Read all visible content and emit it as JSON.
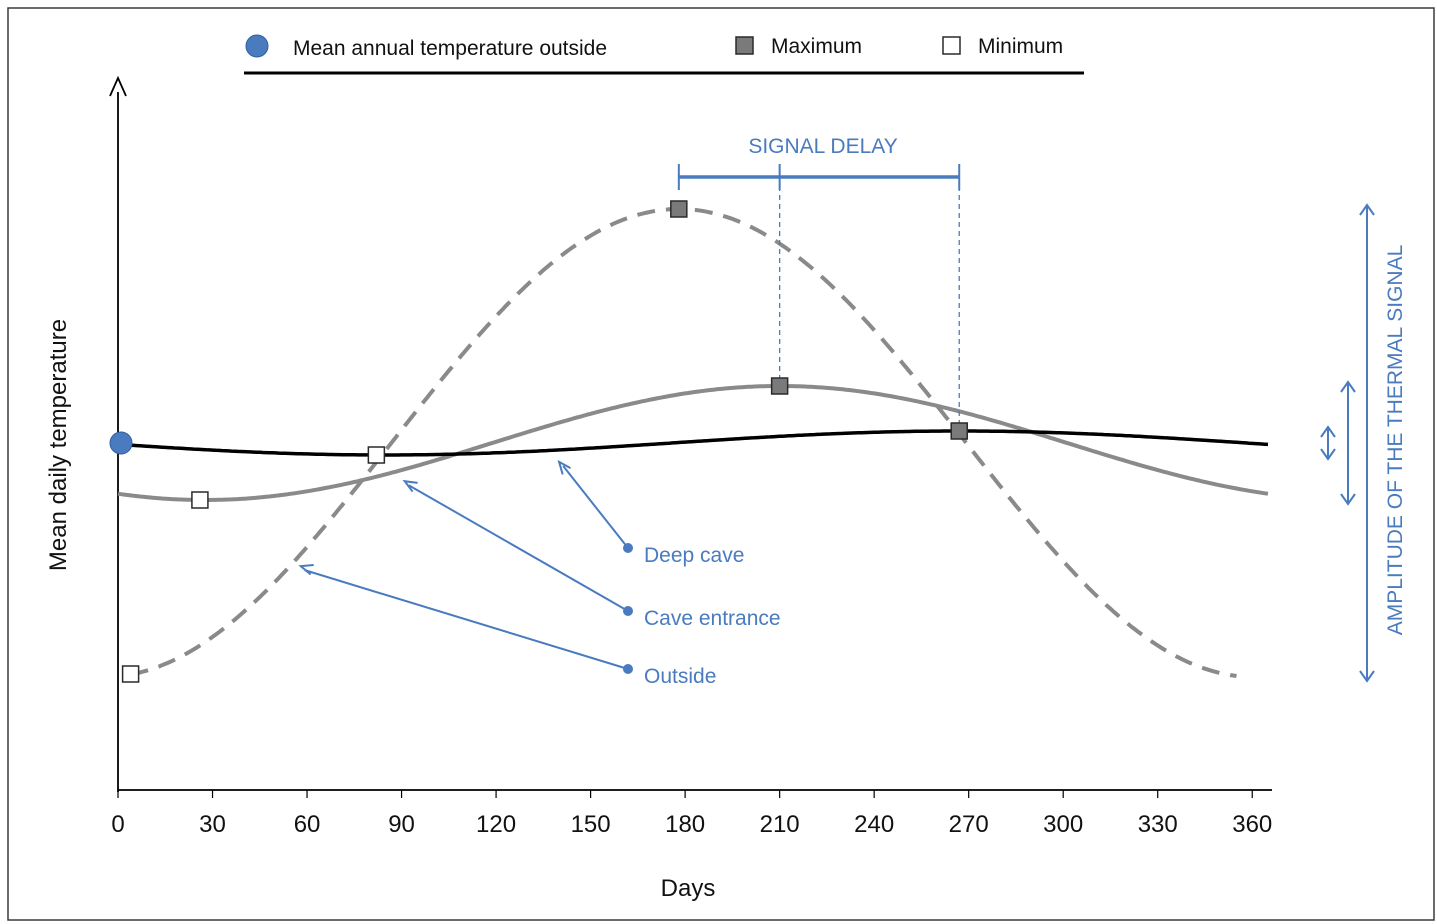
{
  "chart_data": {
    "type": "line",
    "xlabel": "Days",
    "ylabel": "Mean daily temperature",
    "xlim": [
      0,
      365
    ],
    "ylim": [
      -1,
      1
    ],
    "x_ticks": [
      0,
      30,
      60,
      90,
      120,
      150,
      180,
      210,
      240,
      270,
      300,
      330,
      360
    ],
    "y_ticks": [],
    "grid": false,
    "legend_position": "top",
    "legend": {
      "mean": "Mean annual temperature outside",
      "maximum": "Maximum",
      "minimum": "Minimum"
    },
    "mean_annual_outside": 0.0,
    "series": [
      {
        "name": "Outside",
        "style": "dashed-gray",
        "amplitude": 0.78,
        "max_day": 178,
        "min_day": 3,
        "x_range": [
          4,
          355
        ],
        "maximum": [
          178,
          0.78
        ],
        "minimum": [
          4,
          -0.77
        ]
      },
      {
        "name": "Cave entrance",
        "style": "solid-gray",
        "amplitude": 0.19,
        "max_day": 210,
        "min_day": 27,
        "x_range": [
          0,
          365
        ],
        "maximum": [
          210,
          0.19
        ],
        "minimum": [
          26,
          -0.19
        ]
      },
      {
        "name": "Deep cave",
        "style": "solid-black",
        "amplitude": 0.04,
        "max_day": 267,
        "min_day": 82,
        "x_range": [
          0,
          365
        ],
        "maximum": [
          267,
          0.04
        ],
        "minimum": [
          82,
          -0.04
        ]
      }
    ],
    "annotations": {
      "signal_delay": {
        "label": "SIGNAL DELAY",
        "from_day": 178,
        "mid_day": 210,
        "to_day": 267
      },
      "amplitude": {
        "label": "AMPLITUDE OF THE THERMAL SIGNAL"
      },
      "arrow_labels": [
        "Deep cave",
        "Cave entrance",
        "Outside"
      ]
    },
    "colors": {
      "annotation_blue": "#4a7bbf",
      "outside_curve": "#8a8a8a",
      "entrance_curve": "#8a8a8a",
      "deep_curve": "#000000",
      "max_marker": "#7a7a7a",
      "min_marker": "#ffffff",
      "mean_dot": "#4a7bbf"
    }
  }
}
